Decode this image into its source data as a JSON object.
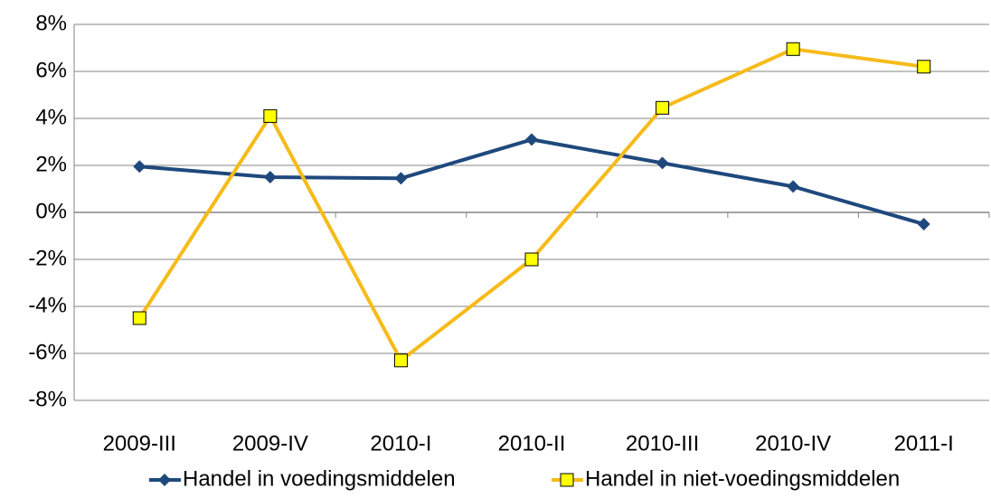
{
  "chart_data": {
    "type": "line",
    "categories": [
      "2009-III",
      "2009-IV",
      "2010-I",
      "2010-II",
      "2010-III",
      "2010-IV",
      "2011-I"
    ],
    "series": [
      {
        "name": "Handel in voedingsmiddelen",
        "color": "#1f497d",
        "marker": "diamond",
        "values": [
          1.95,
          1.5,
          1.45,
          3.1,
          2.1,
          1.1,
          -0.5
        ]
      },
      {
        "name": "Handel in niet-voedingsmiddelen",
        "color": "#f6bb1a",
        "marker": "square",
        "marker_fill": "#ffff00",
        "values": [
          -4.5,
          4.1,
          -6.3,
          -2.0,
          4.45,
          6.95,
          6.2
        ]
      }
    ],
    "ylim": [
      -8,
      8
    ],
    "yticks": [
      {
        "value": -8,
        "label": "-8%"
      },
      {
        "value": -6,
        "label": "-6%"
      },
      {
        "value": -4,
        "label": "-4%"
      },
      {
        "value": -2,
        "label": "-2%"
      },
      {
        "value": 0,
        "label": "0%"
      },
      {
        "value": 2,
        "label": "2%"
      },
      {
        "value": 4,
        "label": "4%"
      },
      {
        "value": 6,
        "label": "6%"
      },
      {
        "value": 8,
        "label": "8%"
      }
    ],
    "grid": true,
    "legend": "bottom"
  }
}
